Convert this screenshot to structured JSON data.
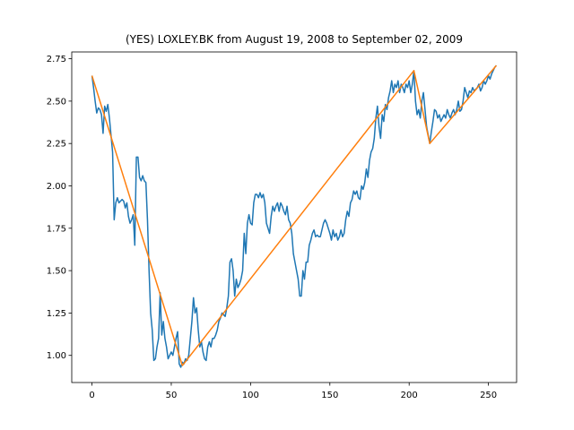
{
  "chart_data": {
    "type": "line",
    "title": "(YES) LOXLEY.BK from August 19, 2008 to September 02, 2009",
    "xlim": [
      -12.75,
      267.75
    ],
    "ylim": [
      0.84,
      2.79
    ],
    "xticks": [
      0,
      50,
      100,
      150,
      200,
      250
    ],
    "yticks": [
      {
        "value": 1,
        "label": "1.00"
      },
      1.25,
      {
        "value": 1.5,
        "label": "1.50"
      },
      1.75,
      {
        "value": 2,
        "label": "2.00"
      },
      2.25,
      {
        "value": 2.5,
        "label": "2.50"
      },
      2.75
    ],
    "series": [
      {
        "color": "#1f77b4",
        "x": [
          0,
          1,
          2,
          3,
          4,
          5,
          6,
          7,
          8,
          9,
          10,
          11,
          12,
          13,
          14,
          15,
          16,
          17,
          18,
          19,
          20,
          21,
          22,
          23,
          24,
          25,
          26,
          27,
          28,
          29,
          30,
          31,
          32,
          33,
          34,
          35,
          36,
          37,
          38,
          39,
          40,
          41,
          42,
          43,
          44,
          45,
          46,
          47,
          48,
          49,
          50,
          51,
          52,
          53,
          54,
          55,
          56,
          57,
          58,
          59,
          60,
          61,
          62,
          63,
          64,
          65,
          66,
          67,
          68,
          69,
          70,
          71,
          72,
          73,
          74,
          75,
          76,
          77,
          78,
          79,
          80,
          81,
          82,
          83,
          84,
          85,
          86,
          87,
          88,
          89,
          90,
          91,
          92,
          93,
          94,
          95,
          96,
          97,
          98,
          99,
          100,
          101,
          102,
          103,
          104,
          105,
          106,
          107,
          108,
          109,
          110,
          111,
          112,
          113,
          114,
          115,
          116,
          117,
          118,
          119,
          120,
          121,
          122,
          123,
          124,
          125,
          126,
          127,
          128,
          129,
          130,
          131,
          132,
          133,
          134,
          135,
          136,
          137,
          138,
          139,
          140,
          141,
          142,
          143,
          144,
          145,
          146,
          147,
          148,
          149,
          150,
          151,
          152,
          153,
          154,
          155,
          156,
          157,
          158,
          159,
          160,
          161,
          162,
          163,
          164,
          165,
          166,
          167,
          168,
          169,
          170,
          171,
          172,
          173,
          174,
          175,
          176,
          177,
          178,
          179,
          180,
          181,
          182,
          183,
          184,
          185,
          186,
          187,
          188,
          189,
          190,
          191,
          192,
          193,
          194,
          195,
          196,
          197,
          198,
          199,
          200,
          201,
          202,
          203,
          204,
          205,
          206,
          207,
          208,
          209,
          210,
          211,
          212,
          213,
          214,
          215,
          216,
          217,
          218,
          219,
          220,
          221,
          222,
          223,
          224,
          225,
          226,
          227,
          228,
          229,
          230,
          231,
          232,
          233,
          234,
          235,
          236,
          237,
          238,
          239,
          240,
          241,
          242,
          243,
          244,
          245,
          246,
          247,
          248,
          249,
          250,
          251,
          252,
          253,
          254,
          255
        ],
        "values": [
          2.65,
          2.58,
          2.5,
          2.43,
          2.46,
          2.45,
          2.42,
          2.31,
          2.47,
          2.44,
          2.48,
          2.4,
          2.3,
          2.2,
          1.8,
          1.9,
          1.93,
          1.9,
          1.91,
          1.92,
          1.91,
          1.87,
          1.9,
          1.82,
          1.78,
          1.8,
          1.83,
          1.65,
          2.17,
          2.17,
          2.05,
          2.03,
          2.06,
          2.03,
          2.02,
          1.8,
          1.5,
          1.25,
          1.15,
          0.97,
          0.98,
          1.05,
          1.1,
          1.37,
          1.12,
          1.2,
          1.1,
          1.05,
          0.98,
          1.0,
          1.02,
          1.0,
          1.05,
          1.1,
          1.14,
          0.95,
          0.93,
          0.96,
          0.95,
          0.98,
          0.97,
          1.0,
          1.1,
          1.2,
          1.34,
          1.25,
          1.28,
          1.15,
          1.05,
          1.08,
          1.02,
          0.98,
          0.97,
          1.05,
          1.08,
          1.05,
          1.1,
          1.1,
          1.12,
          1.15,
          1.2,
          1.22,
          1.25,
          1.24,
          1.23,
          1.28,
          1.35,
          1.55,
          1.57,
          1.5,
          1.35,
          1.45,
          1.4,
          1.42,
          1.45,
          1.5,
          1.72,
          1.6,
          1.78,
          1.83,
          1.78,
          1.77,
          1.9,
          1.95,
          1.95,
          1.93,
          1.96,
          1.93,
          1.95,
          1.9,
          1.78,
          1.75,
          1.72,
          1.82,
          1.88,
          1.85,
          1.88,
          1.9,
          1.85,
          1.9,
          1.88,
          1.85,
          1.83,
          1.88,
          1.8,
          1.78,
          1.72,
          1.6,
          1.55,
          1.5,
          1.45,
          1.35,
          1.35,
          1.5,
          1.45,
          1.55,
          1.55,
          1.65,
          1.68,
          1.72,
          1.74,
          1.7,
          1.71,
          1.7,
          1.7,
          1.74,
          1.78,
          1.8,
          1.78,
          1.75,
          1.72,
          1.68,
          1.74,
          1.7,
          1.72,
          1.68,
          1.7,
          1.74,
          1.7,
          1.72,
          1.8,
          1.85,
          1.82,
          1.9,
          1.92,
          1.97,
          1.95,
          1.97,
          1.93,
          1.92,
          2.0,
          1.98,
          2.02,
          2.1,
          2.05,
          2.15,
          2.2,
          2.22,
          2.28,
          2.4,
          2.47,
          2.35,
          2.28,
          2.42,
          2.38,
          2.48,
          2.45,
          2.52,
          2.56,
          2.62,
          2.55,
          2.6,
          2.58,
          2.62,
          2.55,
          2.6,
          2.58,
          2.55,
          2.6,
          2.58,
          2.62,
          2.55,
          2.6,
          2.68,
          2.5,
          2.42,
          2.45,
          2.4,
          2.5,
          2.55,
          2.45,
          2.35,
          2.3,
          2.25,
          2.32,
          2.38,
          2.45,
          2.44,
          2.4,
          2.42,
          2.38,
          2.4,
          2.42,
          2.4,
          2.45,
          2.42,
          2.4,
          2.43,
          2.45,
          2.42,
          2.45,
          2.5,
          2.44,
          2.45,
          2.5,
          2.58,
          2.55,
          2.52,
          2.56,
          2.55,
          2.58,
          2.56,
          2.57,
          2.58,
          2.6,
          2.56,
          2.58,
          2.62,
          2.6,
          2.62,
          2.65,
          2.63,
          2.66,
          2.68,
          2.7,
          2.71
        ]
      },
      {
        "color": "#ff7f0e",
        "x": [
          0,
          57,
          203,
          213,
          255
        ],
        "values": [
          2.65,
          0.94,
          2.68,
          2.25,
          2.71
        ]
      }
    ]
  }
}
